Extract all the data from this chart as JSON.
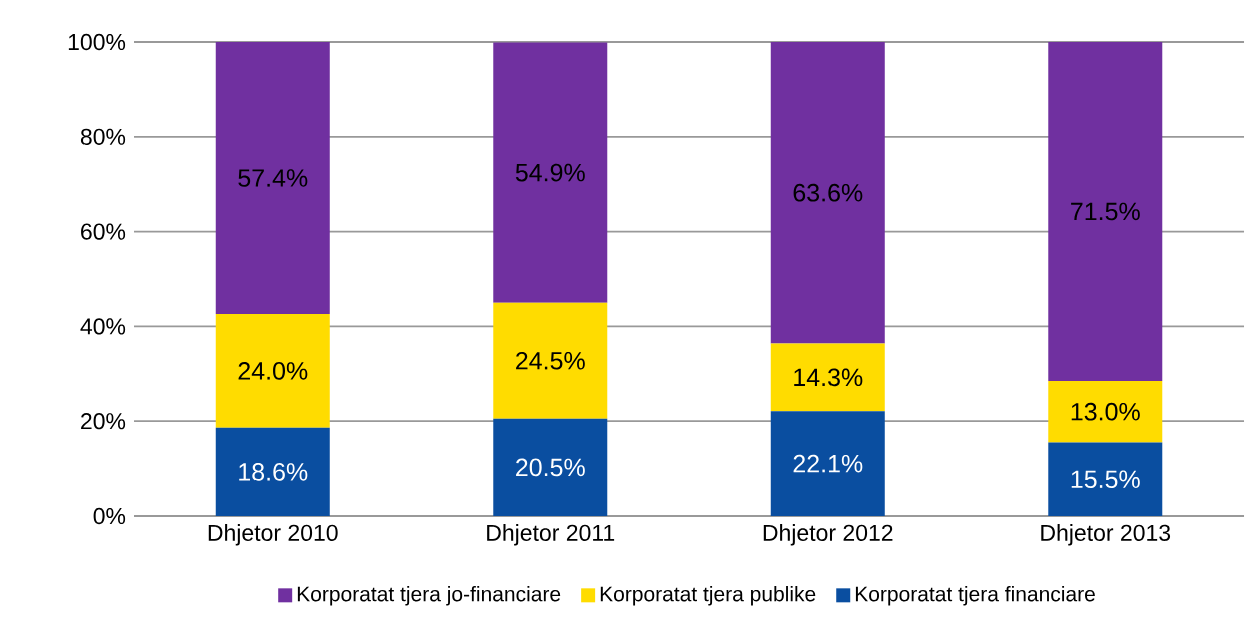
{
  "chart_data": {
    "type": "bar",
    "stacked": true,
    "categories": [
      "Dhjetor 2010",
      "Dhjetor 2011",
      "Dhjetor 2012",
      "Dhjetor 2013"
    ],
    "series": [
      {
        "name": "Korporatat tjera financiare",
        "color": "#0a4ea0",
        "values": [
          18.6,
          20.5,
          22.1,
          15.5
        ],
        "value_labels": [
          "18.6%",
          "20.5%",
          "22.1%",
          "15.5%"
        ]
      },
      {
        "name": "Korporatat tjera publike",
        "color": "#ffdc00",
        "values": [
          24.0,
          24.5,
          14.3,
          13.0
        ],
        "value_labels": [
          "24.0%",
          "24.5%",
          "14.3%",
          "13.0%"
        ]
      },
      {
        "name": "Korporatat tjera jo-financiare",
        "color": "#7030a0",
        "values": [
          57.4,
          54.9,
          63.6,
          71.5
        ],
        "value_labels": [
          "57.4%",
          "54.9%",
          "63.6%",
          "71.5%"
        ]
      }
    ],
    "ylim": [
      0,
      100
    ],
    "yticks": [
      {
        "value": 0,
        "label": "0%"
      },
      {
        "value": 20,
        "label": "20%"
      },
      {
        "value": 40,
        "label": "40%"
      },
      {
        "value": 60,
        "label": "60%"
      },
      {
        "value": 80,
        "label": "80%"
      },
      {
        "value": 100,
        "label": "100%"
      }
    ],
    "grid": "y",
    "legend": "bottom"
  }
}
